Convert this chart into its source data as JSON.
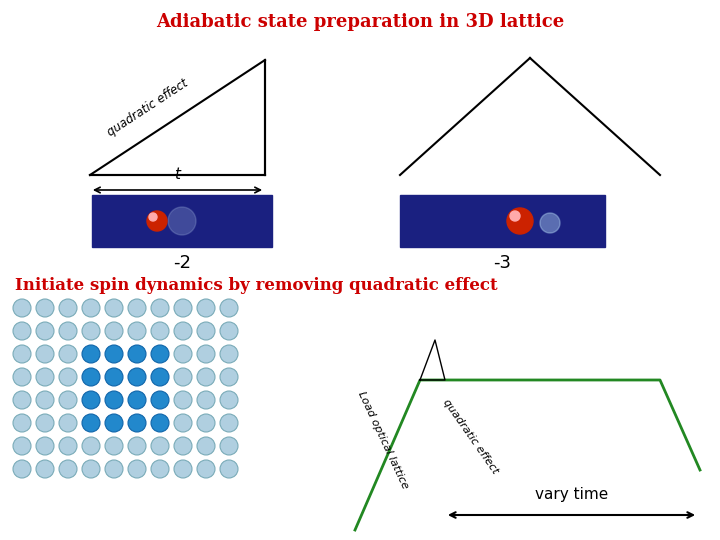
{
  "title": "Adiabatic state preparation in 3D lattice",
  "title_color": "#cc0000",
  "title_fontsize": 13,
  "subtitle": "Initiate spin dynamics by removing quadratic effect",
  "subtitle_color": "#cc0000",
  "subtitle_fontsize": 12,
  "bg_color": "#ffffff",
  "light_blue": "#b0cfe0",
  "dark_blue": "#2288cc",
  "label_minus2": "-2",
  "label_minus3": "-3",
  "vary_time_label": "vary time",
  "load_lattice_label": "Load optical lattice",
  "quadratic_label": "quadratic effect",
  "quadratic_label_top": "quadratic effect",
  "t_label": "t",
  "green_color": "#228822"
}
